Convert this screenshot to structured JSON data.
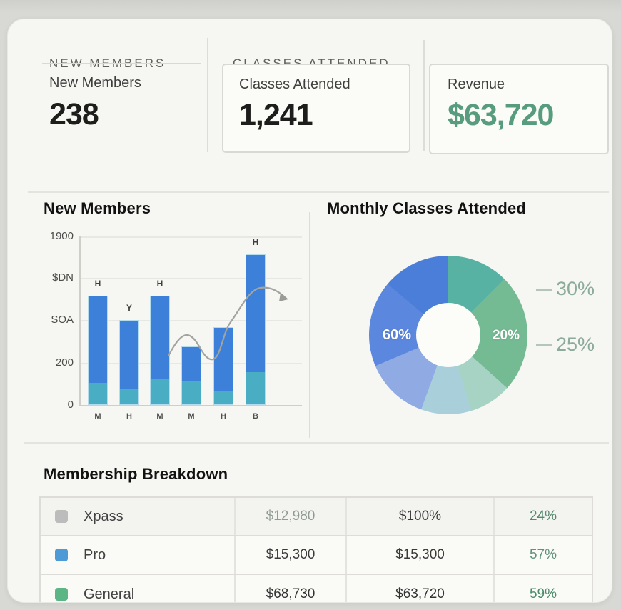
{
  "stats": {
    "tabs": [
      {
        "label": "NEW MEMBERS"
      },
      {
        "label": "CLASSES ATTENDED"
      }
    ],
    "cards": [
      {
        "title": "New Members",
        "value": "238",
        "value_color": "#1d1d1b"
      },
      {
        "title": "Classes Attended",
        "value": "1,241",
        "value_color": "#1d1d1b"
      },
      {
        "title": "Revenue",
        "value": "$63,720",
        "value_color": "#579c7c"
      }
    ]
  },
  "chart_data": [
    {
      "type": "bar",
      "title": "New Members",
      "categories": [
        "M",
        "H",
        "M",
        "M",
        "H",
        "B"
      ],
      "y_tick_labels": [
        "1900",
        "$DN",
        "SOA",
        "200",
        "0"
      ],
      "ylim": [
        0,
        1900
      ],
      "grid": true,
      "stacked": true,
      "series": [
        {
          "name": "base-segment",
          "color": "#49adc4",
          "values": [
            240,
            170,
            290,
            265,
            150,
            360
          ]
        },
        {
          "name": "top-segment",
          "color": "#3c80d9",
          "values": [
            990,
            790,
            945,
            395,
            730,
            1340
          ]
        }
      ],
      "bar_totals": [
        1230,
        960,
        1235,
        660,
        880,
        1700
      ],
      "bar_annotations": [
        "H",
        "Y",
        "H",
        "",
        "",
        "H"
      ],
      "overlay": "gray trend curve with arrowhead over bars 3-6",
      "trend_color": "#a3a39f"
    },
    {
      "type": "pie",
      "variant": "donut",
      "title": "Monthly Classes Attended",
      "inner_labels": [
        {
          "text": "60%",
          "side": "left"
        },
        {
          "text": "20%",
          "side": "right"
        }
      ],
      "callout_labels": [
        {
          "text": "30%"
        },
        {
          "text": "25%"
        }
      ],
      "segments": [
        {
          "color": "#58b2a3",
          "start_deg": 0,
          "end_deg": 45
        },
        {
          "color": "#74ba92",
          "start_deg": 45,
          "end_deg": 132
        },
        {
          "color": "#a6d3c4",
          "start_deg": 132,
          "end_deg": 163
        },
        {
          "color": "#a9d0da",
          "start_deg": 163,
          "end_deg": 200
        },
        {
          "color": "#90aae3",
          "start_deg": 200,
          "end_deg": 247
        },
        {
          "color": "#5c87de",
          "start_deg": 247,
          "end_deg": 310
        },
        {
          "color": "#4a7ed8",
          "start_deg": 310,
          "end_deg": 360
        }
      ],
      "legend_position": "right"
    }
  ],
  "table": {
    "title": "Membership Breakdown",
    "rows": [
      {
        "swatch": "#bcbcbc",
        "name": "Xpass",
        "cells": [
          {
            "text": "$12,980",
            "color": "#8e9a92"
          },
          {
            "text": "$100%",
            "color": "#3a3a3a"
          },
          {
            "text": "24%",
            "color": "#55896e"
          }
        ]
      },
      {
        "swatch": "#4e9ad6",
        "name": "Pro",
        "cells": [
          {
            "text": "$15,300",
            "color": "#3a3a3a"
          },
          {
            "text": "$15,300",
            "color": "#3a3a3a"
          },
          {
            "text": "57%",
            "color": "#618f7c"
          }
        ]
      },
      {
        "swatch": "#5cb585",
        "name": "General",
        "cells": [
          {
            "text": "$68,730",
            "color": "#333333"
          },
          {
            "text": "$63,720",
            "color": "#333333"
          },
          {
            "text": "59%",
            "color": "#4b8a6a"
          }
        ]
      }
    ]
  }
}
